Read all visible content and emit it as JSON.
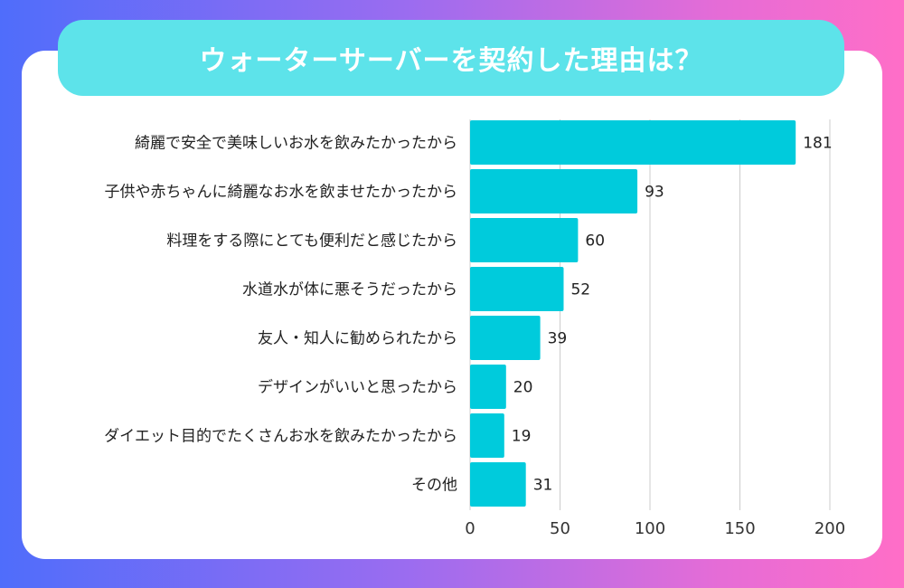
{
  "title": "ウォーターサーバーを契約した理由は？",
  "colors": {
    "bar": "#00cbdc",
    "title_bg": "#5de3ea",
    "grid": "#cccccc"
  },
  "chart_data": {
    "type": "bar",
    "orientation": "horizontal",
    "categories": [
      "綺麗で安全で美味しいお水を飲みたかったから",
      "子供や赤ちゃんに綺麗なお水を飲ませたかったから",
      "料理をする際にとても便利だと感じたから",
      "水道水が体に悪そうだったから",
      "友人・知人に勧められたから",
      "デザインがいいと思ったから",
      "ダイエット目的でたくさんお水を飲みたかったから",
      "その他"
    ],
    "values": [
      181,
      93,
      60,
      52,
      39,
      20,
      19,
      31
    ],
    "xlim": [
      0,
      200
    ],
    "xticks": [
      0,
      50,
      100,
      150,
      200
    ],
    "grid": true
  }
}
